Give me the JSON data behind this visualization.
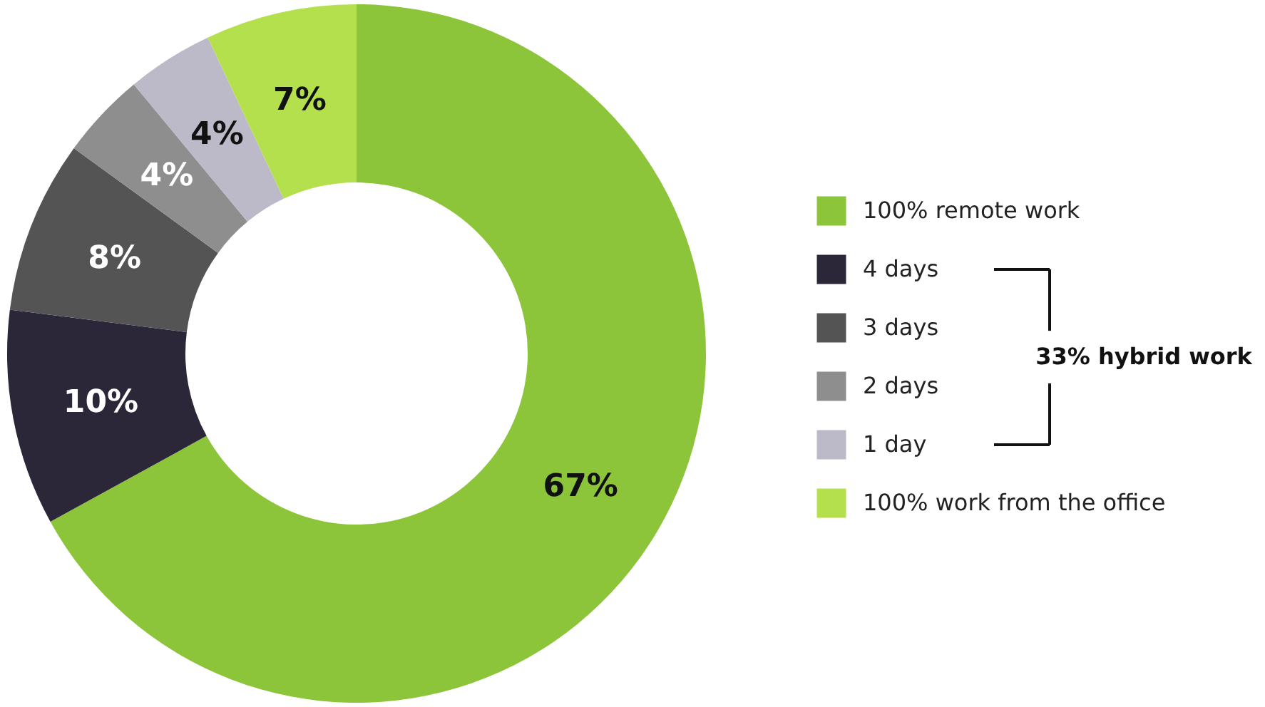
{
  "chart_data": {
    "type": "donut",
    "categories": [
      "100% remote work",
      "4 days",
      "3 days",
      "2 days",
      "1 day",
      "100% work from the office"
    ],
    "values": [
      67,
      10,
      8,
      4,
      4,
      7
    ],
    "colors": [
      "#8cc43a",
      "#2b2739",
      "#545454",
      "#8e8e8e",
      "#bcb9c9",
      "#b4e04e"
    ],
    "value_labels": [
      "67%",
      "10%",
      "8%",
      "4%",
      "4%",
      "7%"
    ],
    "legend": "right",
    "annotations": [
      "33% hybrid work"
    ]
  }
}
